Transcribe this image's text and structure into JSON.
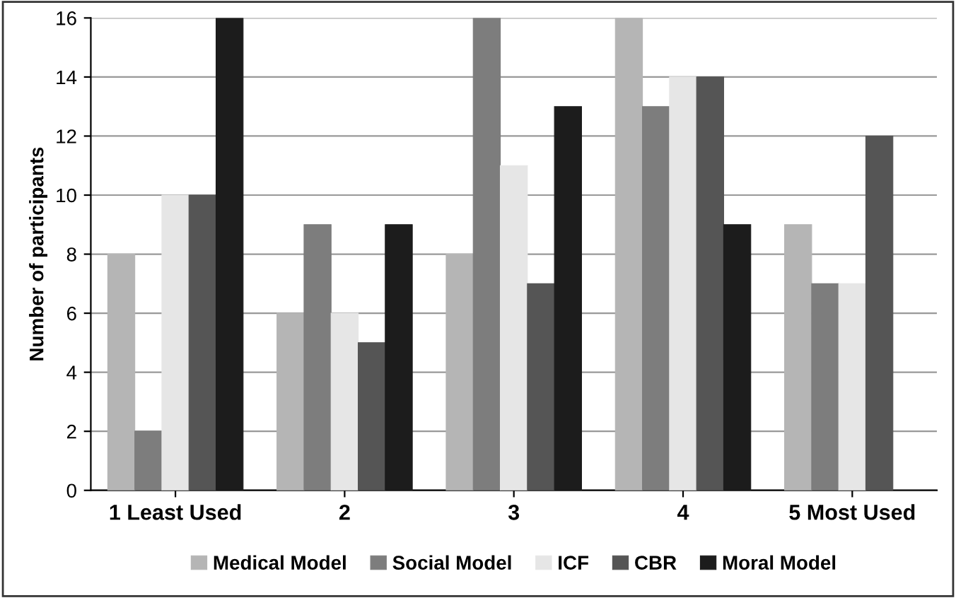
{
  "chart_data": {
    "type": "bar",
    "ylabel": "Number of participants",
    "categories": [
      "1 Least Used",
      "2",
      "3",
      "4",
      "5 Most Used"
    ],
    "series": [
      {
        "name": "Medical Model",
        "color": "#b5b5b5",
        "values": [
          8,
          6,
          8,
          16,
          9
        ]
      },
      {
        "name": "Social Model",
        "color": "#7d7d7d",
        "values": [
          2,
          9,
          16,
          13,
          7
        ]
      },
      {
        "name": "ICF",
        "color": "#e6e6e6",
        "values": [
          10,
          6,
          11,
          14,
          7
        ]
      },
      {
        "name": "CBR",
        "color": "#555555",
        "values": [
          10,
          5,
          7,
          14,
          12
        ]
      },
      {
        "name": "Moral Model",
        "color": "#1c1c1c",
        "values": [
          16,
          9,
          13,
          9,
          0
        ]
      }
    ],
    "ylim": [
      0,
      16
    ],
    "yticks": [
      0,
      2,
      4,
      6,
      8,
      10,
      12,
      14,
      16
    ],
    "grid": "y",
    "legend": "bottom"
  }
}
